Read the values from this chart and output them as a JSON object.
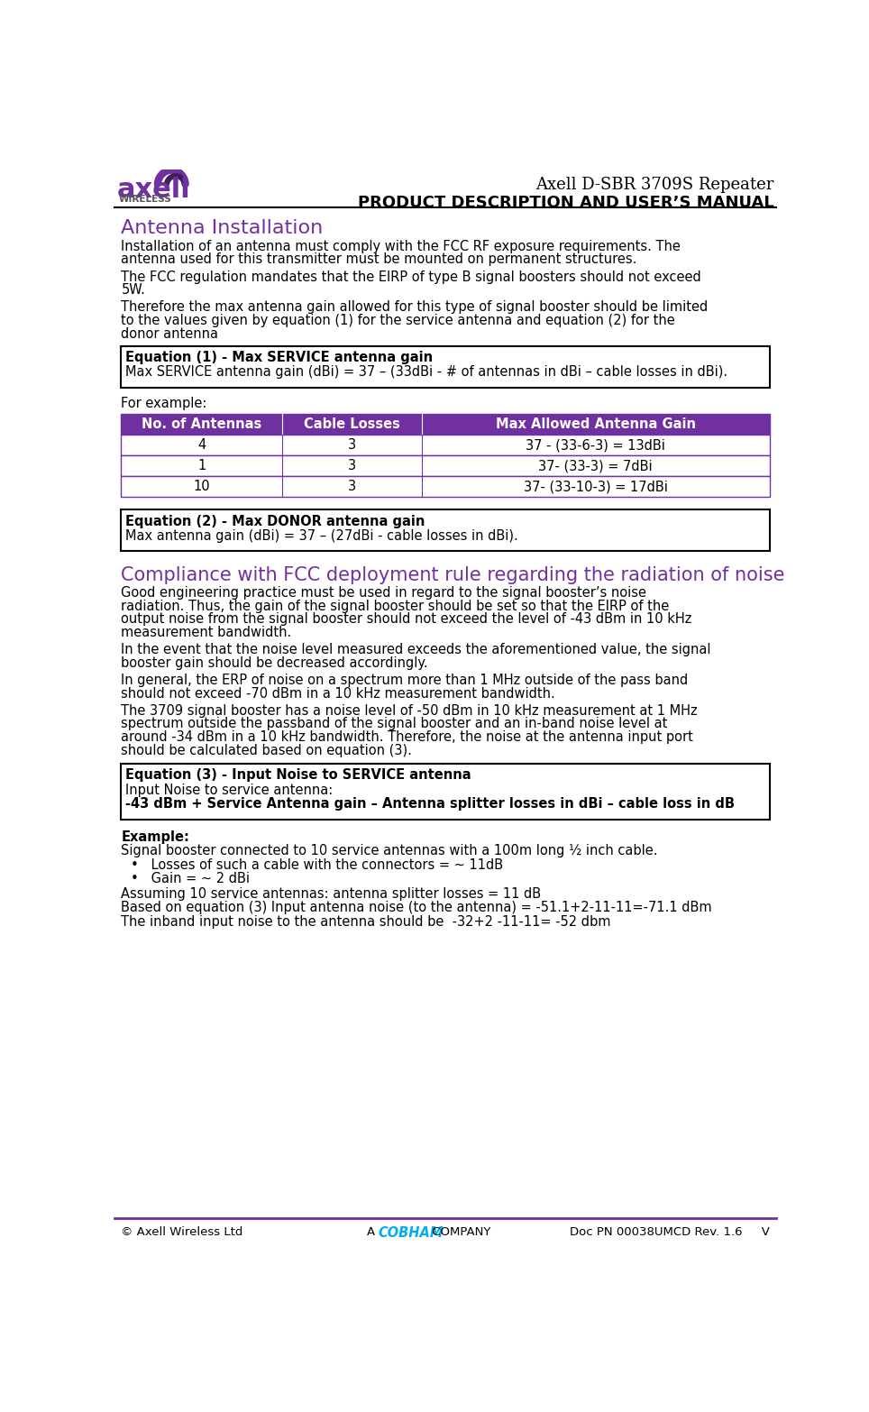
{
  "title_right_line1": "Axell D-SBR 3709S Repeater",
  "title_right_line2": "PRODUCT DESCRIPTION AND USER’S MANUAL",
  "section1_title": "Antenna Installation",
  "section1_color": "#7030A0",
  "eq1_title": "Equation (1) - Max SERVICE antenna gain",
  "eq1_body": "Max SERVICE antenna gain (dBi) = 37 – (33dBi - # of antennas in dBi – cable losses in dBi).",
  "for_example": "For example:",
  "table_headers": [
    "No. of Antennas",
    "Cable Losses",
    "Max Allowed Antenna Gain"
  ],
  "table_rows": [
    [
      "4",
      "3",
      "37 - (33-6-3) = 13dBi"
    ],
    [
      "1",
      "3",
      "37- (33-3) = 7dBi"
    ],
    [
      "10",
      "3",
      "37- (33-10-3) = 17dBi"
    ]
  ],
  "table_header_bg": "#7030A0",
  "table_header_color": "#ffffff",
  "eq2_title": "Equation (2) - Max DONOR antenna gain",
  "eq2_body": "Max antenna gain (dBi) = 37 – (27dBi - cable losses in dBi).",
  "section2_title": "Compliance with FCC deployment rule regarding the radiation of noise",
  "section2_color": "#7030A0",
  "eq3_title": "Equation (3) - Input Noise to SERVICE antenna",
  "eq3_body1": "Input Noise to service antenna:",
  "eq3_body2": "-43 dBm + Service Antenna gain – Antenna splitter losses in dBi – cable loss in dB",
  "example_bold": "Example:",
  "example_line1": "Signal booster connected to 10 service antennas with a 100m long ½ inch cable.",
  "bullet1": "Losses of such a cable with the connectors = ~ 11dB",
  "bullet2": "Gain = ~ 2 dBi",
  "assuming_line": "Assuming 10 service antennas: antenna splitter losses = 11 dB",
  "based_line": "Based on equation (3) Input antenna noise (to the antenna) = -51.1+2-11-11=-71.1 dBm",
  "inband_line": "The inband input noise to the antenna should be  -32+2 -11-11= -52 dbm",
  "footer_left": "© Axell Wireless Ltd",
  "footer_right": "Doc PN 00038UMCD Rev. 1.6     V",
  "cobham_color": "#00AEEF",
  "footer_line_color": "#7030A0",
  "body_font_size": 10.5,
  "small_font_size": 9.5,
  "para1_lines": [
    "Installation of an antenna must comply with the FCC RF exposure requirements. The",
    "antenna used for this transmitter must be mounted on permanent structures."
  ],
  "para2_lines": [
    "The FCC regulation mandates that the EIRP of type B signal boosters should not exceed",
    "5W."
  ],
  "para3_lines": [
    "Therefore the max antenna gain allowed for this type of signal booster should be limited",
    "to the values given by equation (1) for the service antenna and equation (2) for the",
    "donor antenna"
  ],
  "noise_para1_lines": [
    "Good engineering practice must be used in regard to the signal booster’s noise",
    "radiation. Thus, the gain of the signal booster should be set so that the EIRP of the",
    "output noise from the signal booster should not exceed the level of -43 dBm in 10 kHz",
    "measurement bandwidth."
  ],
  "noise_para2_lines": [
    "In the event that the noise level measured exceeds the aforementioned value, the signal",
    "booster gain should be decreased accordingly."
  ],
  "noise_para3_lines": [
    "In general, the ERP of noise on a spectrum more than 1 MHz outside of the pass band",
    "should not exceed -70 dBm in a 10 kHz measurement bandwidth."
  ],
  "noise_para4_lines": [
    "The 3709 signal booster has a noise level of -50 dBm in 10 kHz measurement at 1 MHz",
    "spectrum outside the passband of the signal booster and an in-band noise level at",
    "around -34 dBm in a 10 kHz bandwidth. Therefore, the noise at the antenna input port",
    "should be calculated based on equation (3)."
  ]
}
